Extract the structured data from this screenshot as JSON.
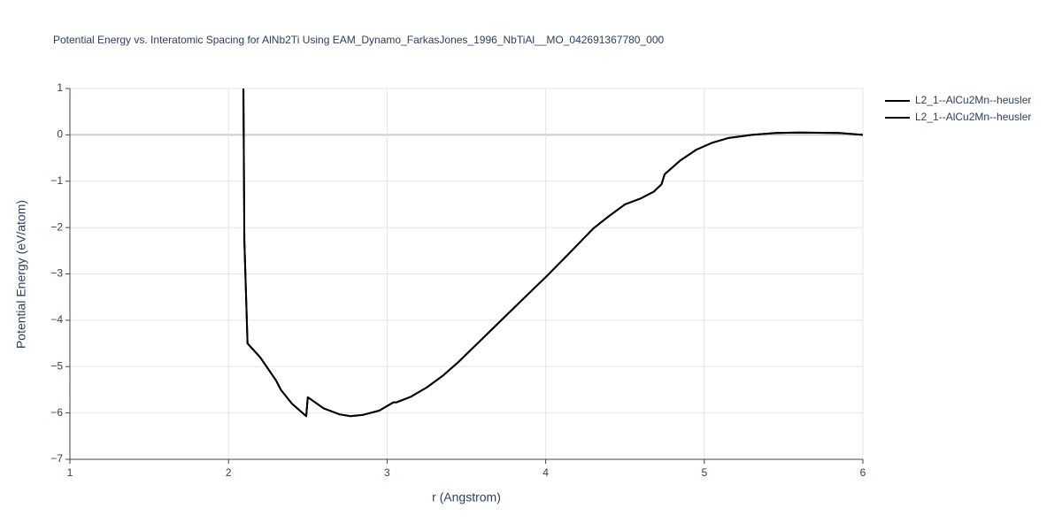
{
  "chart_data": {
    "type": "line",
    "title": "Potential Energy vs. Interatomic Spacing for AlNb2Ti Using EAM_Dynamo_FarkasJones_1996_NbTiAl__MO_042691367780_000",
    "x_label": "r (Angstrom)",
    "y_label": "Potential Energy (eV/atom)",
    "x": [
      2.094,
      2.1,
      2.12,
      2.2,
      2.3,
      2.33,
      2.4,
      2.49,
      2.5,
      2.6,
      2.7,
      2.77,
      2.85,
      2.95,
      3.04,
      3.06,
      3.15,
      3.25,
      3.35,
      3.45,
      3.6,
      3.75,
      3.9,
      4.0,
      4.15,
      4.3,
      4.4,
      4.5,
      4.6,
      4.68,
      4.73,
      4.75,
      4.85,
      4.95,
      5.05,
      5.15,
      5.3,
      5.45,
      5.6,
      5.85,
      6.0
    ],
    "series": [
      {
        "name": "L2_1--AlCu2Mn--heusler",
        "color": "#000000",
        "values": [
          1.0,
          -2.29,
          -4.5,
          -4.8,
          -5.3,
          -5.5,
          -5.8,
          -6.07,
          -5.66,
          -5.9,
          -6.03,
          -6.07,
          -6.04,
          -5.95,
          -5.77,
          -5.77,
          -5.65,
          -5.45,
          -5.2,
          -4.9,
          -4.4,
          -3.9,
          -3.4,
          -3.07,
          -2.55,
          -2.02,
          -1.75,
          -1.5,
          -1.37,
          -1.23,
          -1.07,
          -0.85,
          -0.55,
          -0.32,
          -0.17,
          -0.07,
          0.0,
          0.04,
          0.05,
          0.04,
          0.0
        ]
      },
      {
        "name": "L2_1--AlCu2Mn--heusler",
        "color": "#000000",
        "values": [
          1.0,
          -2.29,
          -4.5,
          -4.8,
          -5.3,
          -5.5,
          -5.8,
          -6.07,
          -5.66,
          -5.9,
          -6.03,
          -6.07,
          -6.04,
          -5.95,
          -5.77,
          -5.77,
          -5.65,
          -5.45,
          -5.2,
          -4.9,
          -4.4,
          -3.9,
          -3.4,
          -3.07,
          -2.55,
          -2.02,
          -1.75,
          -1.5,
          -1.37,
          -1.23,
          -1.07,
          -0.85,
          -0.55,
          -0.32,
          -0.17,
          -0.07,
          0.0,
          0.04,
          0.05,
          0.04,
          0.0
        ]
      }
    ],
    "xlim": [
      1,
      6
    ],
    "xticks": [
      1,
      2,
      3,
      4,
      5,
      6
    ],
    "ylim": [
      -7,
      1
    ],
    "yticks": [
      1,
      0,
      {
        "value": -1,
        "label": "−1"
      },
      {
        "value": -2,
        "label": "−2"
      },
      {
        "value": -3,
        "label": "−3"
      },
      {
        "value": -4,
        "label": "−4"
      },
      {
        "value": -5,
        "label": "−5"
      },
      {
        "value": -6,
        "label": "−6"
      },
      {
        "value": -7,
        "label": "−7"
      }
    ],
    "grid": true
  }
}
